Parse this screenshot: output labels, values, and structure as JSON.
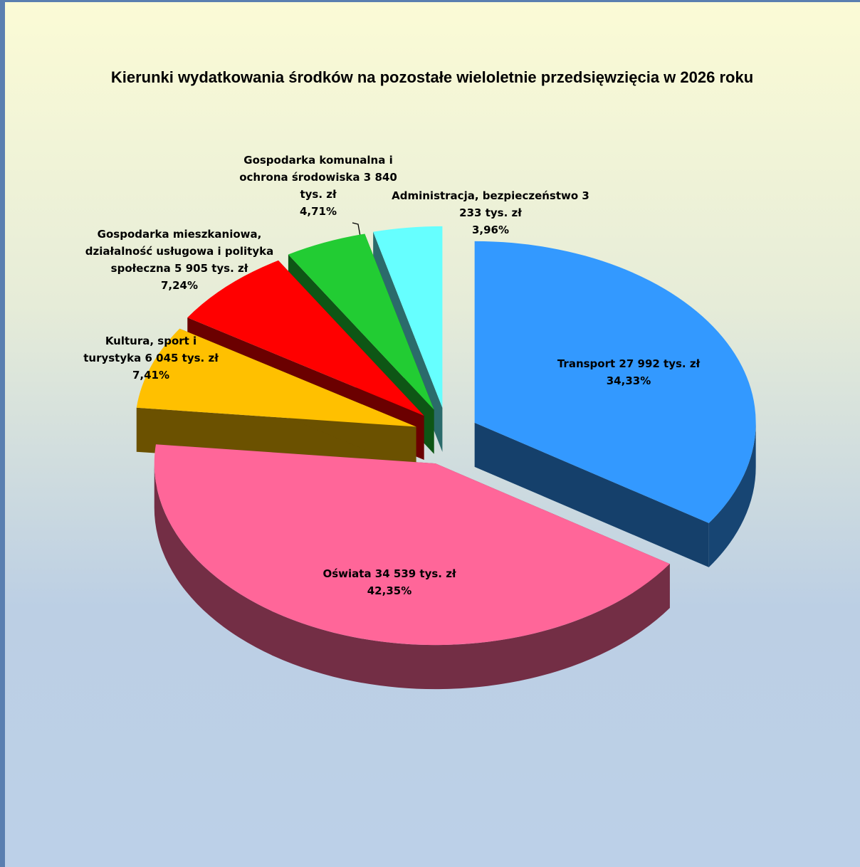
{
  "chart_data": {
    "type": "pie",
    "title": "Kierunki wydatkowania środków na pozostałe wieloletnie przedsięwzięcia w 2026 roku",
    "categories": [
      "Transport",
      "Oświata",
      "Kultura, sport i turystyka",
      "Gospodarka mieszkaniowa, działalność usługowa i polityka społeczna",
      "Gospodarka komunalna i ochrona środowiska",
      "Administracja, bezpieczeństwo"
    ],
    "values": [
      34.33,
      42.35,
      7.41,
      7.24,
      4.71,
      3.96
    ],
    "value_labels": [
      "34,33%",
      "42,35%",
      "7,41%",
      "7,24%",
      "4,71%",
      "3,96%"
    ],
    "amounts": [
      27992,
      34539,
      6045,
      5905,
      3840,
      3233
    ],
    "amount_labels": [
      "27 992 tys. zł",
      "34 539 tys. zł",
      "6 045 tys. zł",
      "5 905 tys. zł",
      "3 840 tys. zł",
      "3 233 tys. zł"
    ],
    "colors": [
      "#3399ff",
      "#ff6699",
      "#ffc000",
      "#ff0000",
      "#22cc33",
      "#66ffff"
    ]
  }
}
